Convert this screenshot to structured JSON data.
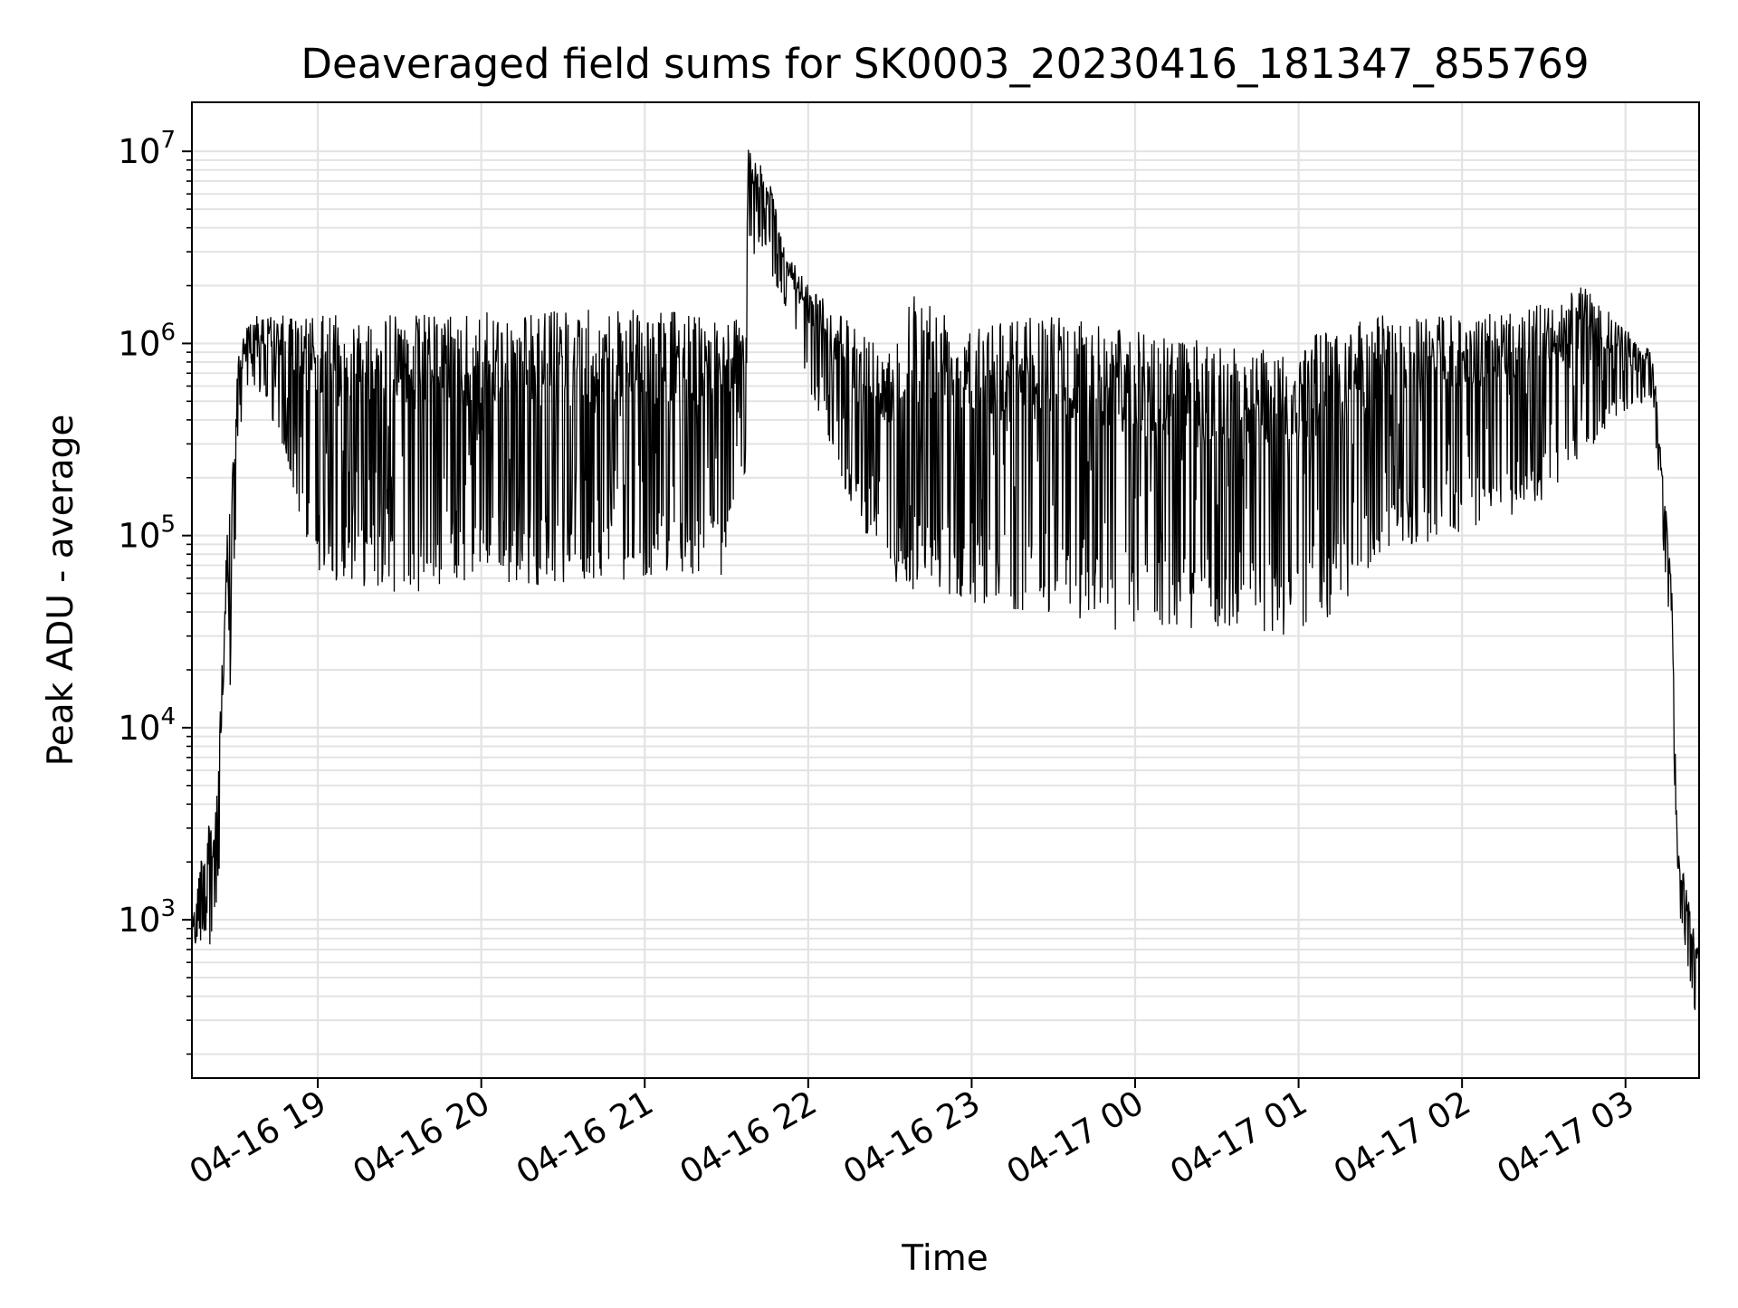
{
  "chart_data": {
    "type": "line",
    "title": "Deaveraged field sums for SK0003_20230416_181347_855769",
    "xlabel": "Time",
    "ylabel": "Peak ADU - average",
    "x_axis": {
      "kind": "datetime",
      "range": [
        "2023-04-16T18:13:47",
        "2023-04-17T03:27:00"
      ],
      "ticks": [
        {
          "label": "04-16 19",
          "value": "2023-04-16T19:00"
        },
        {
          "label": "04-16 20",
          "value": "2023-04-16T20:00"
        },
        {
          "label": "04-16 21",
          "value": "2023-04-16T21:00"
        },
        {
          "label": "04-16 22",
          "value": "2023-04-16T22:00"
        },
        {
          "label": "04-16 23",
          "value": "2023-04-16T23:00"
        },
        {
          "label": "04-17 00",
          "value": "2023-04-17T00:00"
        },
        {
          "label": "04-17 01",
          "value": "2023-04-17T01:00"
        },
        {
          "label": "04-17 02",
          "value": "2023-04-17T02:00"
        },
        {
          "label": "04-17 03",
          "value": "2023-04-17T03:00"
        }
      ],
      "tick_label_rotation": 30
    },
    "y_axis": {
      "scale": "log",
      "range": [
        150,
        18000000
      ],
      "ticks": [
        {
          "base": "10",
          "exp": "3",
          "value": 1000
        },
        {
          "base": "10",
          "exp": "4",
          "value": 10000
        },
        {
          "base": "10",
          "exp": "5",
          "value": 100000
        },
        {
          "base": "10",
          "exp": "6",
          "value": 1000000
        },
        {
          "base": "10",
          "exp": "7",
          "value": 10000000
        }
      ]
    },
    "grid": {
      "major": true,
      "minor_y": true,
      "color": "#e3e3e3"
    },
    "legend": "none",
    "line_color": "#000000",
    "series": [
      {
        "envelope": [
          {
            "x": "2023-04-16T18:13:47",
            "lower": 600,
            "upper": 1000
          },
          {
            "x": "2023-04-16T18:18",
            "lower": 800,
            "upper": 2800
          },
          {
            "x": "2023-04-16T18:22",
            "lower": 700,
            "upper": 3500
          },
          {
            "x": "2023-04-16T18:27",
            "lower": 5000,
            "upper": 120000
          },
          {
            "x": "2023-04-16T18:31",
            "lower": 300000,
            "upper": 900000
          },
          {
            "x": "2023-04-16T18:35",
            "lower": 700000,
            "upper": 1400000
          },
          {
            "x": "2023-04-16T18:45",
            "lower": 300000,
            "upper": 1400000
          },
          {
            "x": "2023-04-16T19:00",
            "lower": 60000,
            "upper": 1400000
          },
          {
            "x": "2023-04-16T19:30",
            "lower": 50000,
            "upper": 1450000
          },
          {
            "x": "2023-04-16T20:00",
            "lower": 55000,
            "upper": 1450000
          },
          {
            "x": "2023-04-16T20:30",
            "lower": 55000,
            "upper": 1500000
          },
          {
            "x": "2023-04-16T21:00",
            "lower": 60000,
            "upper": 1500000
          },
          {
            "x": "2023-04-16T21:30",
            "lower": 60000,
            "upper": 1400000
          },
          {
            "x": "2023-04-16T21:37",
            "lower": 200000,
            "upper": 1300000
          },
          {
            "x": "2023-04-16T21:38",
            "lower": 3000000,
            "upper": 11000000
          },
          {
            "x": "2023-04-16T21:45",
            "lower": 2500000,
            "upper": 8000000
          },
          {
            "x": "2023-04-16T21:52",
            "lower": 1500000,
            "upper": 3000000
          },
          {
            "x": "2023-04-16T22:00",
            "lower": 600000,
            "upper": 2000000
          },
          {
            "x": "2023-04-16T22:15",
            "lower": 150000,
            "upper": 1300000
          },
          {
            "x": "2023-04-16T22:30",
            "lower": 60000,
            "upper": 1000000
          },
          {
            "x": "2023-04-16T22:38",
            "lower": 50000,
            "upper": 2000000
          },
          {
            "x": "2023-04-16T23:00",
            "lower": 45000,
            "upper": 1400000
          },
          {
            "x": "2023-04-16T23:30",
            "lower": 38000,
            "upper": 1400000
          },
          {
            "x": "2023-04-17T00:00",
            "lower": 30000,
            "upper": 1200000
          },
          {
            "x": "2023-04-17T00:30",
            "lower": 32000,
            "upper": 1000000
          },
          {
            "x": "2023-04-17T01:00",
            "lower": 30000,
            "upper": 1000000
          },
          {
            "x": "2023-04-17T01:15",
            "lower": 40000,
            "upper": 1300000
          },
          {
            "x": "2023-04-17T01:30",
            "lower": 80000,
            "upper": 1400000
          },
          {
            "x": "2023-04-17T02:00",
            "lower": 100000,
            "upper": 1400000
          },
          {
            "x": "2023-04-17T02:30",
            "lower": 150000,
            "upper": 1600000
          },
          {
            "x": "2023-04-17T02:45",
            "lower": 250000,
            "upper": 2000000
          },
          {
            "x": "2023-04-17T03:00",
            "lower": 450000,
            "upper": 1200000
          },
          {
            "x": "2023-04-17T03:10",
            "lower": 500000,
            "upper": 900000
          },
          {
            "x": "2023-04-17T03:17",
            "lower": 20000,
            "upper": 60000
          },
          {
            "x": "2023-04-17T03:19",
            "lower": 1200,
            "upper": 2500
          },
          {
            "x": "2023-04-17T03:27",
            "lower": 250,
            "upper": 700
          }
        ]
      }
    ]
  }
}
